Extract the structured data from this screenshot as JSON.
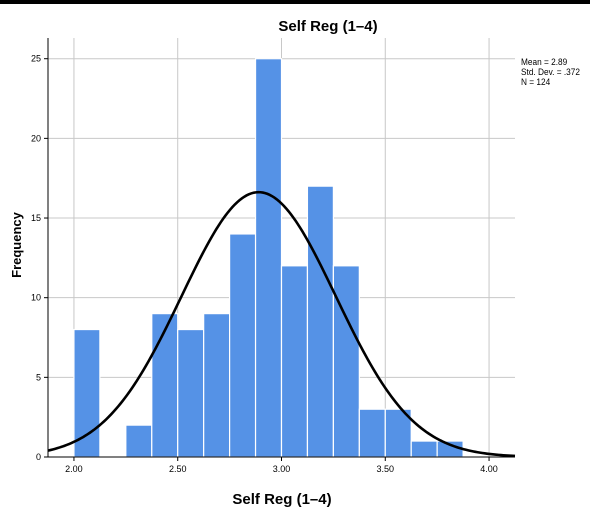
{
  "chart_data": {
    "type": "bar",
    "title": "Self Reg (1–4)",
    "xlabel": "Self Reg (1–4)",
    "ylabel": "Frequency",
    "bin_width": 0.125,
    "bins": [
      {
        "start": 2.0,
        "end": 2.125,
        "count": 8
      },
      {
        "start": 2.125,
        "end": 2.25,
        "count": 0
      },
      {
        "start": 2.25,
        "end": 2.375,
        "count": 2
      },
      {
        "start": 2.375,
        "end": 2.5,
        "count": 9
      },
      {
        "start": 2.5,
        "end": 2.625,
        "count": 8
      },
      {
        "start": 2.625,
        "end": 2.75,
        "count": 9
      },
      {
        "start": 2.75,
        "end": 2.875,
        "count": 14
      },
      {
        "start": 2.875,
        "end": 3.0,
        "count": 25
      },
      {
        "start": 3.0,
        "end": 3.125,
        "count": 12
      },
      {
        "start": 3.125,
        "end": 3.25,
        "count": 17
      },
      {
        "start": 3.25,
        "end": 3.375,
        "count": 12
      },
      {
        "start": 3.375,
        "end": 3.5,
        "count": 3
      },
      {
        "start": 3.5,
        "end": 3.625,
        "count": 3
      },
      {
        "start": 3.625,
        "end": 3.75,
        "count": 1
      },
      {
        "start": 3.75,
        "end": 3.875,
        "count": 1
      }
    ],
    "x_ticks": [
      "2.00",
      "2.50",
      "3.00",
      "3.50",
      "4.00"
    ],
    "x_tick_values": [
      2.0,
      2.5,
      3.0,
      3.5,
      4.0
    ],
    "y_ticks": [
      "0",
      "5",
      "10",
      "15",
      "20",
      "25"
    ],
    "y_tick_values": [
      0,
      5,
      10,
      15,
      20,
      25
    ],
    "xlim": [
      1.875,
      4.125
    ],
    "ylim": [
      0,
      26.3
    ],
    "grid": true,
    "normal_curve": {
      "mean": 2.89,
      "sd": 0.372,
      "n": 124
    },
    "stats": {
      "mean": "Mean = 2.89",
      "sd": "Std. Dev. = .372",
      "n": "N = 124"
    },
    "colors": {
      "bar": "#5592e6",
      "bar_edge": "#ffffff",
      "curve": "#000000",
      "grid": "#c8c8c8"
    }
  }
}
